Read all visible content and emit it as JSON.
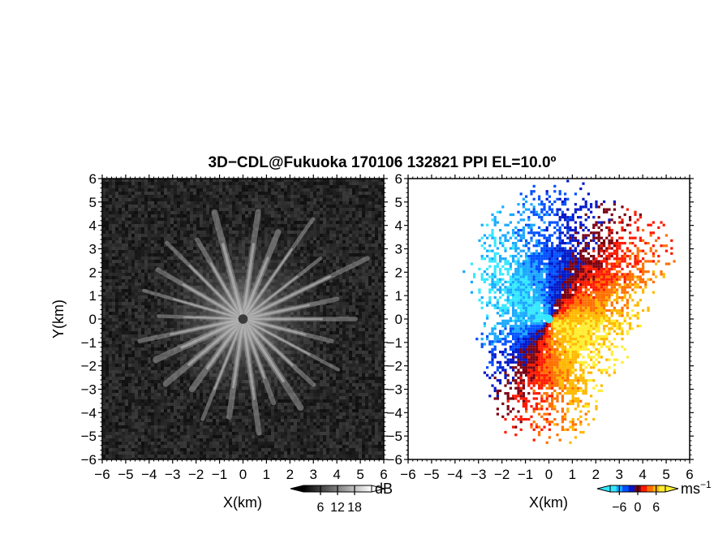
{
  "title": "3D−CDL@Fukuoka 170106 132821 PPI EL=10.0º",
  "chart_data": [
    {
      "type": "heatmap",
      "panel": "left",
      "quantity": "reflectivity (dB)",
      "xlabel": "X(km)",
      "ylabel": "Y(km)",
      "xlim": [
        -6,
        6
      ],
      "ylim": [
        -6,
        6
      ],
      "xticks": [
        "−6",
        "−5",
        "−4",
        "−3",
        "−2",
        "−1",
        "0",
        "1",
        "2",
        "3",
        "4",
        "5",
        "6"
      ],
      "yticks": [
        "−6",
        "−5",
        "−4",
        "−3",
        "−2",
        "−1",
        "0",
        "1",
        "2",
        "3",
        "4",
        "5",
        "6"
      ],
      "colorbar": {
        "unit": "dB",
        "ticks": [
          "6",
          "12",
          "18"
        ],
        "tick_values": [
          6,
          12,
          18
        ],
        "range": [
          0,
          24
        ],
        "colors": [
          "#000000",
          "#ffffff"
        ]
      },
      "grayscale_range": [
        0,
        24
      ],
      "center": [
        0,
        0
      ],
      "center_disk_radius_km": 0.2,
      "rays_deg": [
        8,
        22,
        35,
        52,
        64,
        78,
        90,
        104,
        118,
        133,
        147,
        160,
        172,
        188,
        202,
        216,
        230,
        245,
        258,
        272,
        286,
        300,
        315,
        330,
        345
      ],
      "ray_length_km": [
        4.6,
        4.0,
        5.2,
        4.2,
        5.9,
        4.1,
        4.8,
        3.9,
        4.6,
        4.1,
        4.5,
        3.8,
        4.9,
        4.2,
        4.6,
        3.7,
        4.3,
        4.1,
        4.5,
        3.6,
        4.4,
        4.2,
        4.6,
        3.9,
        4.7
      ]
    },
    {
      "type": "heatmap",
      "panel": "right",
      "quantity": "radial velocity (ms⁻¹)",
      "xlabel": "X(km)",
      "xlim": [
        -6,
        6
      ],
      "ylim": [
        -6,
        6
      ],
      "xticks": [
        "−6",
        "−5",
        "−4",
        "−3",
        "−2",
        "−1",
        "0",
        "1",
        "2",
        "3",
        "4",
        "5",
        "6"
      ],
      "yticks": [
        "−6",
        "−5",
        "−4",
        "−3",
        "−2",
        "−1",
        "0",
        "1",
        "2",
        "3",
        "4",
        "5",
        "6"
      ],
      "colorbar": {
        "unit": "ms",
        "unit_exponent": "−1",
        "ticks": [
          "−6",
          "0",
          "6"
        ],
        "tick_values": [
          -6,
          0,
          6
        ],
        "range": [
          -9,
          9
        ],
        "colors": [
          "#33e8ff",
          "#1aa8ff",
          "#0050ff",
          "#0018c8",
          "#7a0010",
          "#ff1800",
          "#ff7000",
          "#ffb800",
          "#ffee30"
        ]
      },
      "center": [
        0,
        0
      ],
      "velocity_range": [
        -9,
        9
      ],
      "wind_toward_deg": 120,
      "echo_extent_km": [
        [
          20,
          4.8
        ],
        [
          45,
          5.4
        ],
        [
          60,
          5.6
        ],
        [
          75,
          4.0
        ],
        [
          90,
          3.8
        ],
        [
          105,
          3.2
        ],
        [
          120,
          3.4
        ],
        [
          135,
          3.0
        ],
        [
          150,
          3.6
        ],
        [
          165,
          4.6
        ],
        [
          180,
          4.4
        ],
        [
          195,
          4.8
        ],
        [
          210,
          4.0
        ],
        [
          225,
          3.4
        ],
        [
          240,
          3.0
        ],
        [
          255,
          3.0
        ],
        [
          270,
          2.4
        ],
        [
          285,
          2.8
        ],
        [
          300,
          3.6
        ],
        [
          315,
          4.0
        ],
        [
          330,
          4.6
        ],
        [
          345,
          4.8
        ],
        [
          360,
          5.2
        ]
      ]
    }
  ]
}
